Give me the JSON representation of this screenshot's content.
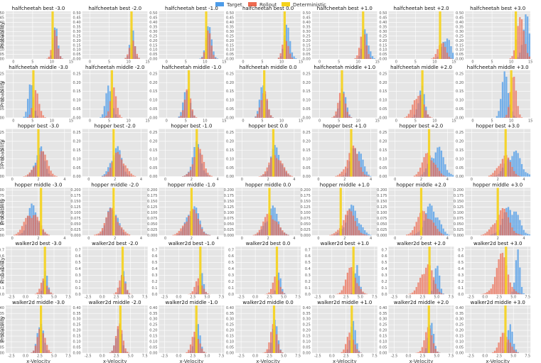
{
  "legend": [
    {
      "label": "Target",
      "color": "#4c9be8"
    },
    {
      "label": "Rollout",
      "color": "#ee6a50"
    },
    {
      "label": "Deterministic",
      "color": "#f5d21a"
    }
  ],
  "labels": {
    "ylabel": "Probability",
    "xlabel": "x-Velocity"
  },
  "rows": [
    {
      "title_prefix": "halfcheetah best",
      "xticks": [
        "0",
        "5",
        "10",
        "15"
      ],
      "xlim": [
        -2,
        15
      ],
      "yticks": [
        "0.00",
        "0.05",
        "0.10",
        "0.15",
        "0.20",
        "0.25",
        "0.30",
        "0.35",
        "0.40",
        "0.45",
        "0.50"
      ],
      "ylim": [
        0,
        0.52
      ]
    },
    {
      "title_prefix": "halfcheetah middle",
      "xticks": [
        "0",
        "5",
        "10",
        "15"
      ],
      "xlim": [
        -2,
        15
      ],
      "yticks": [
        "0.00",
        "0.05",
        "0.10",
        "0.15",
        "0.20",
        "0.25"
      ],
      "ylim": [
        0,
        0.27
      ]
    },
    {
      "title_prefix": "hopper best",
      "xticks": [
        "0",
        "2",
        "4"
      ],
      "xlim": [
        -0.5,
        4.5
      ],
      "yticks": [
        "0.00",
        "0.05",
        "0.10",
        "0.15",
        "0.20",
        "0.25"
      ],
      "ylim": [
        0,
        0.27
      ]
    },
    {
      "title_prefix": "hopper middle",
      "xticks": [
        "0",
        "2",
        "4"
      ],
      "xlim": [
        -0.5,
        4.5
      ],
      "yticks": [
        "0.000",
        "0.025",
        "0.050",
        "0.075",
        "0.100",
        "0.125",
        "0.150",
        "0.175",
        "0.200"
      ],
      "ylim": [
        0,
        0.21
      ]
    },
    {
      "title_prefix": "walker2d best",
      "xticks": [
        "-2.5",
        "0.0",
        "2.5",
        "5.0",
        "7.5"
      ],
      "xlim": [
        -3.5,
        8
      ],
      "yticks": [
        "0.0",
        "0.1",
        "0.2",
        "0.3",
        "0.4",
        "0.5",
        "0.6",
        "0.7"
      ],
      "ylim": [
        0,
        0.75
      ]
    },
    {
      "title_prefix": "walker2d middle",
      "xticks": [
        "-2.5",
        "0.0",
        "2.5",
        "5.0",
        "7.5"
      ],
      "xlim": [
        -3.5,
        8
      ],
      "yticks": [
        "0.00",
        "0.05",
        "0.10",
        "0.15",
        "0.20",
        "0.25",
        "0.30",
        "0.35",
        "0.40"
      ],
      "ylim": [
        0,
        0.42
      ]
    }
  ],
  "columns": [
    "-3.0",
    "-2.0",
    "-1.0",
    "0.0",
    "+1.0",
    "+2.0",
    "+3.0"
  ],
  "chart_data": {
    "type": "bar",
    "note_type": "histogram grid",
    "grid": true,
    "legend_position": "top-center",
    "series_names": [
      "Target",
      "Rollout",
      "Deterministic"
    ],
    "ylabel": "Probability",
    "xlabel": "x-Velocity",
    "panels": [
      {
        "env": "halfcheetah best",
        "shift": "-3.0",
        "target_mean": 11.0,
        "target_sd": 0.6,
        "rollout_mean": 10.8,
        "rollout_sd": 0.7,
        "deterministic": 10.2,
        "peak": 0.3
      },
      {
        "env": "halfcheetah best",
        "shift": "-2.0",
        "target_mean": 11.0,
        "target_sd": 0.6,
        "rollout_mean": 11.0,
        "rollout_sd": 0.7,
        "deterministic": 10.8,
        "peak": 0.28
      },
      {
        "env": "halfcheetah best",
        "shift": "-1.0",
        "target_mean": 11.0,
        "target_sd": 0.8,
        "rollout_mean": 10.9,
        "rollout_sd": 0.7,
        "deterministic": 10.3,
        "peak": 0.3
      },
      {
        "env": "halfcheetah best",
        "shift": "0.0",
        "target_mean": 11.5,
        "target_sd": 0.8,
        "rollout_mean": 11.0,
        "rollout_sd": 0.7,
        "deterministic": 10.8,
        "peak": 0.32
      },
      {
        "env": "halfcheetah best",
        "shift": "+1.0",
        "target_mean": 12.0,
        "target_sd": 0.8,
        "rollout_mean": 11.3,
        "rollout_sd": 0.8,
        "deterministic": 11.3,
        "peak": 0.3
      },
      {
        "env": "halfcheetah best",
        "shift": "+2.0",
        "target_mean": 13.0,
        "target_sd": 1.0,
        "rollout_mean": 11.8,
        "rollout_sd": 0.9,
        "deterministic": 11.4,
        "peak": 0.25
      },
      {
        "env": "halfcheetah best",
        "shift": "+3.0",
        "target_mean": 13.8,
        "target_sd": 0.8,
        "rollout_mean": 12.5,
        "rollout_sd": 1.0,
        "deterministic": 11.2,
        "peak": 0.45
      },
      {
        "env": "halfcheetah middle",
        "shift": "-3.0",
        "target_mean": 4.6,
        "target_sd": 0.7,
        "rollout_mean": 6.0,
        "rollout_sd": 0.8,
        "deterministic": 5.2,
        "peak": 0.18
      },
      {
        "env": "halfcheetah middle",
        "shift": "-2.0",
        "target_mean": 5.0,
        "target_sd": 0.8,
        "rollout_mean": 6.0,
        "rollout_sd": 0.8,
        "deterministic": 5.7,
        "peak": 0.18
      },
      {
        "env": "halfcheetah middle",
        "shift": "-1.0",
        "target_mean": 5.3,
        "target_sd": 0.8,
        "rollout_mean": 5.6,
        "rollout_sd": 0.8,
        "deterministic": 5.8,
        "peak": 0.17
      },
      {
        "env": "halfcheetah middle",
        "shift": "0.0",
        "target_mean": 5.3,
        "target_sd": 0.8,
        "rollout_mean": 5.4,
        "rollout_sd": 0.8,
        "deterministic": 5.5,
        "peak": 0.2
      },
      {
        "env": "halfcheetah middle",
        "shift": "+1.0",
        "target_mean": 6.0,
        "target_sd": 0.8,
        "rollout_mean": 5.8,
        "rollout_sd": 0.9,
        "deterministic": 5.8,
        "peak": 0.16
      },
      {
        "env": "halfcheetah middle",
        "shift": "+2.0",
        "target_mean": 6.5,
        "target_sd": 0.8,
        "rollout_mean": 5.7,
        "rollout_sd": 1.2,
        "deterministic": 6.8,
        "peak": 0.17
      },
      {
        "env": "halfcheetah middle",
        "shift": "+3.0",
        "target_mean": 8.5,
        "target_sd": 0.9,
        "rollout_mean": 10.5,
        "rollout_sd": 0.8,
        "deterministic": 10.0,
        "peak": 0.23
      },
      {
        "env": "hopper best",
        "shift": "-3.0",
        "target_mean": 2.1,
        "target_sd": 0.35,
        "rollout_mean": 2.2,
        "rollout_sd": 0.45,
        "deterministic": 2.0,
        "peak": 0.15
      },
      {
        "env": "hopper best",
        "shift": "-2.0",
        "target_mean": 2.1,
        "target_sd": 0.4,
        "rollout_mean": 2.3,
        "rollout_sd": 0.45,
        "deterministic": 1.9,
        "peak": 0.15
      },
      {
        "env": "hopper best",
        "shift": "-1.0",
        "target_mean": 2.4,
        "target_sd": 0.35,
        "rollout_mean": 2.5,
        "rollout_sd": 0.4,
        "deterministic": 2.4,
        "peak": 0.16
      },
      {
        "env": "hopper best",
        "shift": "0.0",
        "target_mean": 2.6,
        "target_sd": 0.4,
        "rollout_mean": 2.6,
        "rollout_sd": 0.45,
        "deterministic": 2.4,
        "peak": 0.15
      },
      {
        "env": "hopper best",
        "shift": "+1.0",
        "target_mean": 2.9,
        "target_sd": 0.4,
        "rollout_mean": 2.6,
        "rollout_sd": 0.45,
        "deterministic": 2.5,
        "peak": 0.17
      },
      {
        "env": "hopper best",
        "shift": "+2.0",
        "target_mean": 3.2,
        "target_sd": 0.5,
        "rollout_mean": 2.6,
        "rollout_sd": 0.45,
        "deterministic": 2.6,
        "peak": 0.15
      },
      {
        "env": "hopper best",
        "shift": "+3.0",
        "target_mean": 3.2,
        "target_sd": 0.55,
        "rollout_mean": 2.5,
        "rollout_sd": 0.45,
        "deterministic": 2.6,
        "peak": 0.13
      },
      {
        "env": "hopper middle",
        "shift": "-3.0",
        "target_mean": 1.6,
        "target_sd": 0.4,
        "rollout_mean": 1.5,
        "rollout_sd": 0.5,
        "deterministic": 2.2,
        "peak": 0.12
      },
      {
        "env": "hopper middle",
        "shift": "-2.0",
        "target_mean": 1.8,
        "target_sd": 0.4,
        "rollout_mean": 1.8,
        "rollout_sd": 0.5,
        "deterministic": 1.9,
        "peak": 0.12
      },
      {
        "env": "hopper middle",
        "shift": "-1.0",
        "target_mean": 2.1,
        "target_sd": 0.45,
        "rollout_mean": 2.0,
        "rollout_sd": 0.5,
        "deterministic": 2.0,
        "peak": 0.12
      },
      {
        "env": "hopper middle",
        "shift": "0.0",
        "target_mean": 2.3,
        "target_sd": 0.45,
        "rollout_mean": 2.2,
        "rollout_sd": 0.5,
        "deterministic": 2.1,
        "peak": 0.11
      },
      {
        "env": "hopper middle",
        "shift": "+1.0",
        "target_mean": 2.6,
        "target_sd": 0.5,
        "rollout_mean": 2.3,
        "rollout_sd": 0.5,
        "deterministic": 1.7,
        "peak": 0.11
      },
      {
        "env": "hopper middle",
        "shift": "+2.0",
        "target_mean": 2.8,
        "target_sd": 0.5,
        "rollout_mean": 2.3,
        "rollout_sd": 0.55,
        "deterministic": 2.0,
        "peak": 0.12
      },
      {
        "env": "hopper middle",
        "shift": "+3.0",
        "target_mean": 3.0,
        "target_sd": 0.55,
        "rollout_mean": 2.3,
        "rollout_sd": 0.55,
        "deterministic": 2.0,
        "peak": 0.12
      },
      {
        "env": "walker2d best",
        "shift": "-3.0",
        "target_mean": 3.5,
        "target_sd": 0.4,
        "rollout_mean": 3.3,
        "rollout_sd": 0.55,
        "deterministic": 3.4,
        "peak": 0.3
      },
      {
        "env": "walker2d best",
        "shift": "-2.0",
        "target_mean": 3.7,
        "target_sd": 0.4,
        "rollout_mean": 3.5,
        "rollout_sd": 0.55,
        "deterministic": 3.6,
        "peak": 0.3
      },
      {
        "env": "walker2d best",
        "shift": "-1.0",
        "target_mean": 4.0,
        "target_sd": 0.4,
        "rollout_mean": 3.6,
        "rollout_sd": 0.6,
        "deterministic": 3.8,
        "peak": 0.3
      },
      {
        "env": "walker2d best",
        "shift": "0.0",
        "target_mean": 4.2,
        "target_sd": 0.4,
        "rollout_mean": 3.6,
        "rollout_sd": 0.6,
        "deterministic": 3.8,
        "peak": 0.3
      },
      {
        "env": "walker2d best",
        "shift": "+1.0",
        "target_mean": 4.5,
        "target_sd": 0.4,
        "rollout_mean": 3.5,
        "rollout_sd": 0.9,
        "deterministic": 3.8,
        "peak": 0.45
      },
      {
        "env": "walker2d best",
        "shift": "+2.0",
        "target_mean": 5.0,
        "target_sd": 0.4,
        "rollout_mean": 3.2,
        "rollout_sd": 1.0,
        "deterministic": 3.7,
        "peak": 0.55
      },
      {
        "env": "walker2d best",
        "shift": "+3.0",
        "target_mean": 5.7,
        "target_sd": 0.4,
        "rollout_mean": 3.0,
        "rollout_sd": 1.1,
        "deterministic": 3.7,
        "peak": 0.62
      },
      {
        "env": "walker2d middle",
        "shift": "-3.0",
        "target_mean": 2.6,
        "target_sd": 0.5,
        "rollout_mean": 2.8,
        "rollout_sd": 0.6,
        "deterministic": 2.7,
        "peak": 0.3
      },
      {
        "env": "walker2d middle",
        "shift": "-2.0",
        "target_mean": 2.9,
        "target_sd": 0.5,
        "rollout_mean": 3.0,
        "rollout_sd": 0.6,
        "deterministic": 3.2,
        "peak": 0.25
      },
      {
        "env": "walker2d middle",
        "shift": "-1.0",
        "target_mean": 3.2,
        "target_sd": 0.5,
        "rollout_mean": 3.0,
        "rollout_sd": 0.6,
        "deterministic": 3.1,
        "peak": 0.24
      },
      {
        "env": "walker2d middle",
        "shift": "0.0",
        "target_mean": 3.4,
        "target_sd": 0.5,
        "rollout_mean": 3.2,
        "rollout_sd": 0.6,
        "deterministic": 3.3,
        "peak": 0.25
      },
      {
        "env": "walker2d middle",
        "shift": "+1.0",
        "target_mean": 3.7,
        "target_sd": 0.5,
        "rollout_mean": 3.3,
        "rollout_sd": 0.6,
        "deterministic": 3.5,
        "peak": 0.23
      },
      {
        "env": "walker2d middle",
        "shift": "+2.0",
        "target_mean": 4.0,
        "target_sd": 0.5,
        "rollout_mean": 3.5,
        "rollout_sd": 0.7,
        "deterministic": 3.6,
        "peak": 0.22
      },
      {
        "env": "walker2d middle",
        "shift": "+3.0",
        "target_mean": 4.5,
        "target_sd": 0.5,
        "rollout_mean": 3.5,
        "rollout_sd": 0.8,
        "deterministic": 3.6,
        "peak": 0.22
      }
    ]
  }
}
